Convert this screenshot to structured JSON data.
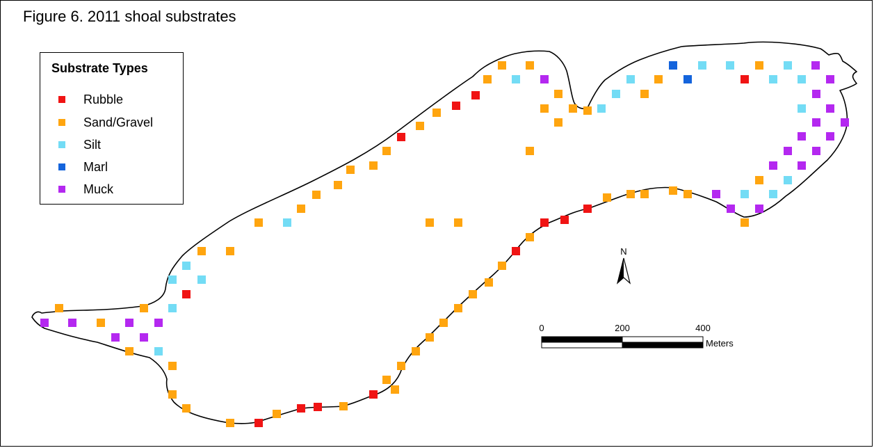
{
  "figure_title": "Figure 6. 2011 shoal substrates",
  "legend": {
    "title": "Substrate Types",
    "items": [
      {
        "key": "rubble",
        "label": "Rubble",
        "color": "#f01414"
      },
      {
        "key": "sand_gravel",
        "label": "Sand/Gravel",
        "color": "#ffa50f"
      },
      {
        "key": "silt",
        "label": "Silt",
        "color": "#73dcf5"
      },
      {
        "key": "marl",
        "label": "Marl",
        "color": "#1464dc"
      },
      {
        "key": "muck",
        "label": "Muck",
        "color": "#b428f0"
      }
    ]
  },
  "north_arrow": {
    "label": "N"
  },
  "scale_bar": {
    "ticks": [
      "0",
      "200",
      "400"
    ],
    "unit": "Meters"
  }
}
